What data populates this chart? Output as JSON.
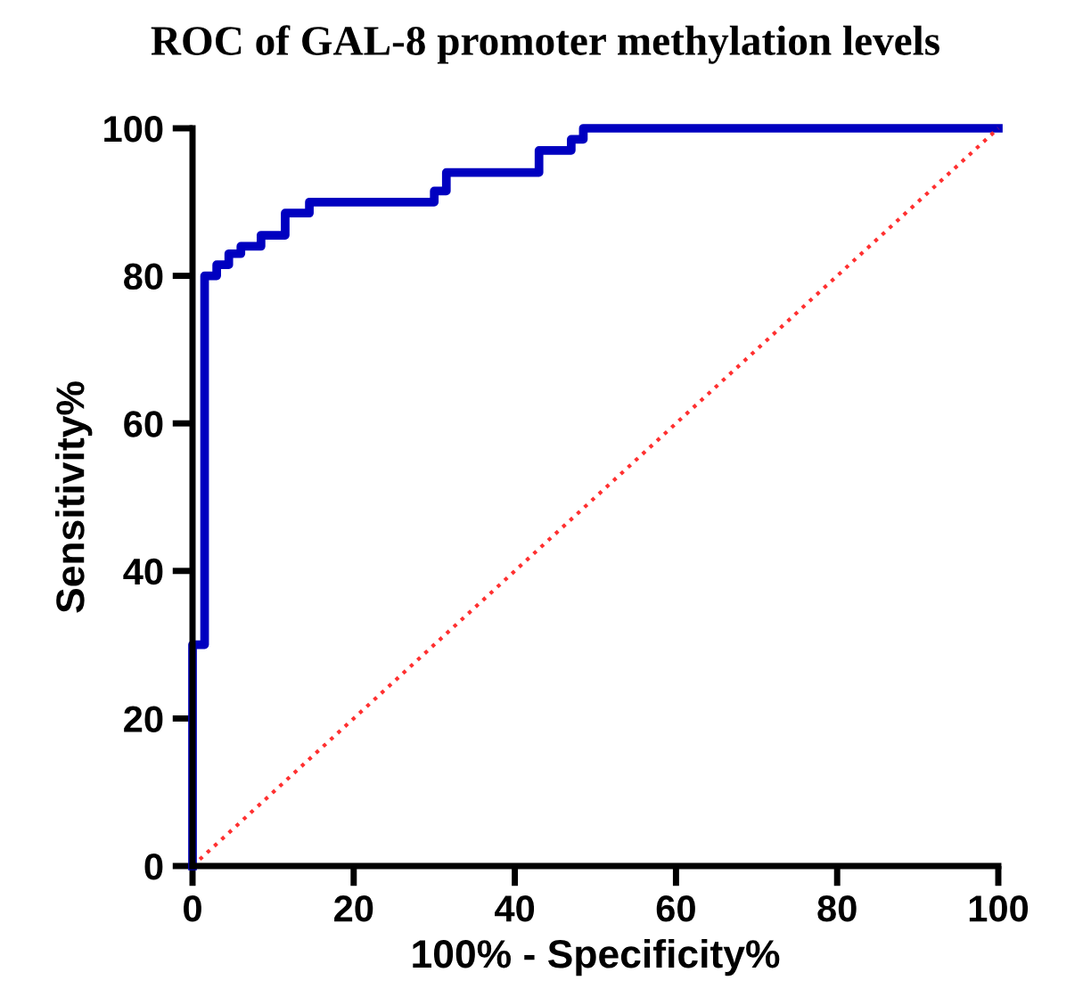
{
  "chart_data": {
    "type": "line",
    "title": "ROC of GAL-8 promoter methylation levels",
    "xlabel": "100% - Specificity%",
    "ylabel": "Sensitivity%",
    "series": [
      {
        "color": "#0000c0",
        "line_style": "solid",
        "x": [
          0,
          0,
          1.5,
          1.5,
          3,
          3,
          4.5,
          4.5,
          6,
          6,
          8.5,
          8.5,
          11.5,
          11.5,
          14.5,
          14.5,
          30,
          30,
          31.5,
          31.5,
          43,
          43,
          47,
          47,
          48.5,
          48.5,
          100
        ],
        "values": [
          0,
          30,
          30,
          80,
          80,
          81.5,
          81.5,
          83,
          83,
          84,
          84,
          85.5,
          85.5,
          88.5,
          88.5,
          90,
          90,
          91.5,
          91.5,
          94,
          94,
          97,
          97,
          98.5,
          98.5,
          100,
          100
        ]
      },
      {
        "color": "#ff3030",
        "line_style": "dotted",
        "x": [
          0,
          100
        ],
        "values": [
          0,
          100
        ]
      }
    ],
    "xlim": [
      0,
      100
    ],
    "ylim": [
      0,
      100
    ],
    "xticks": [
      0,
      20,
      40,
      60,
      80,
      100
    ],
    "yticks": [
      0,
      20,
      40,
      60,
      80,
      100
    ],
    "grid": false,
    "legend": false
  }
}
